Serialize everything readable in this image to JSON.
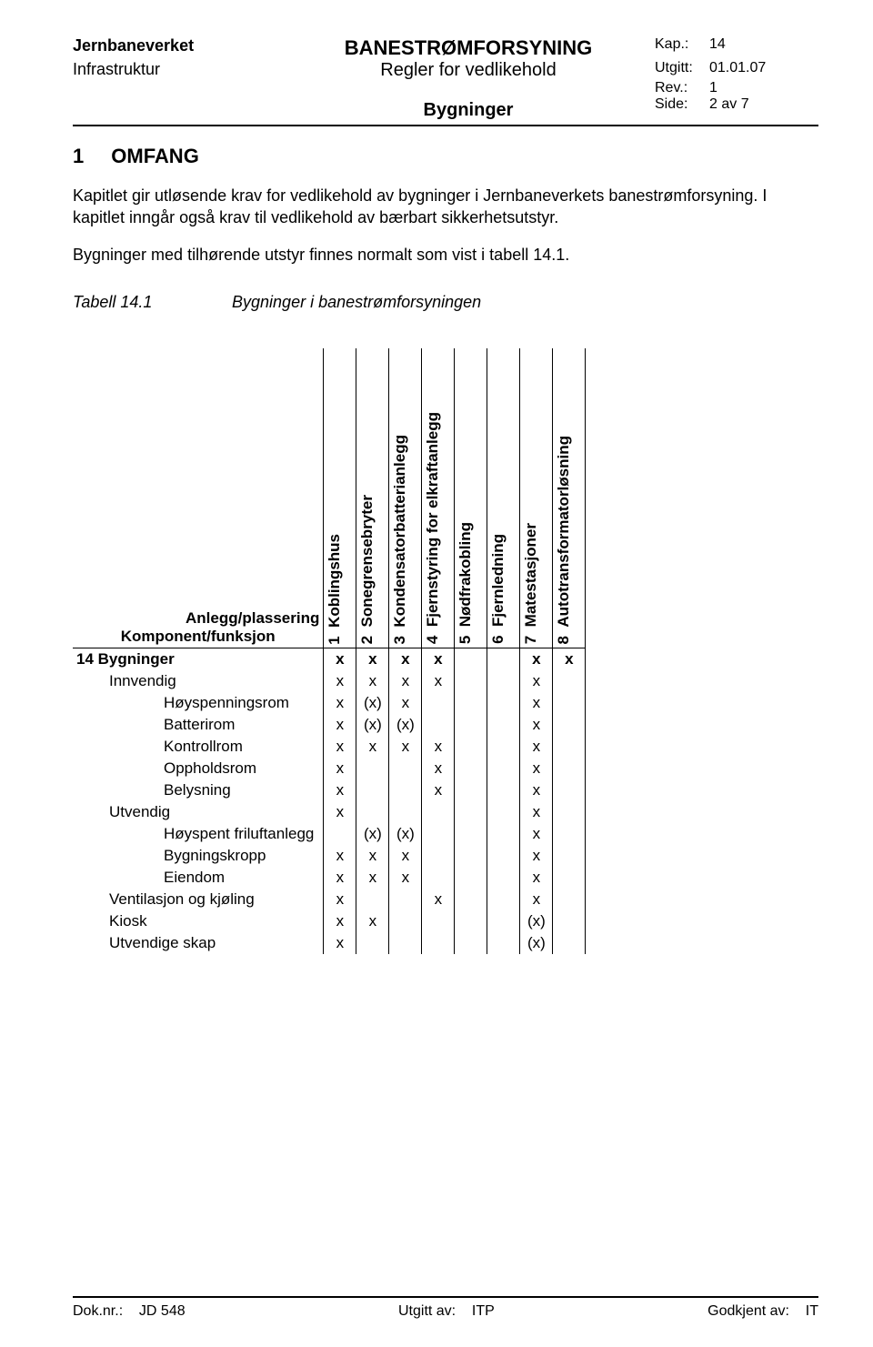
{
  "header": {
    "org": "Jernbaneverket",
    "dept": "Infrastruktur",
    "title_main": "BANESTRØMFORSYNING",
    "title_sub": "Regler for vedlikehold",
    "title_sub2": "Bygninger",
    "meta": {
      "kap_label": "Kap.:",
      "kap": "14",
      "utgitt_label": "Utgitt:",
      "utgitt": "01.01.07",
      "rev_label": "Rev.:",
      "rev": "1",
      "side_label": "Side:",
      "side": "2 av 7"
    }
  },
  "section": {
    "num": "1",
    "title": "OMFANG"
  },
  "para1": "Kapitlet gir utløsende krav for vedlikehold av bygninger i Jernbaneverkets banestrømforsyning. I kapitlet inngår også krav til vedlikehold av bærbart sikkerhetsutstyr.",
  "para2": "Bygninger med tilhørende utstyr finnes normalt som vist i tabell 14.1.",
  "tabell": {
    "no": "Tabell 14.1",
    "caption": "Bygninger i banestrømforsyningen"
  },
  "matrix": {
    "corner_top": "Anlegg/plassering",
    "corner_bottom": "Komponent/funksjon",
    "columns": [
      {
        "num": "1",
        "label": "Koblingshus"
      },
      {
        "num": "2",
        "label": "Sonegrensebryter"
      },
      {
        "num": "3",
        "label": "Kondensatorbatterianlegg"
      },
      {
        "num": "4",
        "label": "Fjernstyring for elkraftanlegg"
      },
      {
        "num": "5",
        "label": "Nødfrakobling"
      },
      {
        "num": "6",
        "label": "Fjernledning"
      },
      {
        "num": "7",
        "label": "Matestasjoner"
      },
      {
        "num": "8",
        "label": "Autotransformatorløsning"
      }
    ],
    "rows": [
      {
        "label": "14 Bygninger",
        "indent": 0,
        "bold": true,
        "cells": [
          "x",
          "x",
          "x",
          "x",
          "",
          "",
          "x",
          "x"
        ]
      },
      {
        "label": "Innvendig",
        "indent": 1,
        "cells": [
          "x",
          "x",
          "x",
          "x",
          "",
          "",
          "x",
          ""
        ]
      },
      {
        "label": "Høyspenningsrom",
        "indent": 2,
        "cells": [
          "x",
          "(x)",
          "x",
          "",
          "",
          "",
          "x",
          ""
        ]
      },
      {
        "label": "Batterirom",
        "indent": 2,
        "cells": [
          "x",
          "(x)",
          "(x)",
          "",
          "",
          "",
          "x",
          ""
        ]
      },
      {
        "label": "Kontrollrom",
        "indent": 2,
        "cells": [
          "x",
          "x",
          "x",
          "x",
          "",
          "",
          "x",
          ""
        ]
      },
      {
        "label": "Oppholdsrom",
        "indent": 2,
        "cells": [
          "x",
          "",
          "",
          "x",
          "",
          "",
          "x",
          ""
        ]
      },
      {
        "label": "Belysning",
        "indent": 2,
        "cells": [
          "x",
          "",
          "",
          "x",
          "",
          "",
          "x",
          ""
        ]
      },
      {
        "label": "Utvendig",
        "indent": 1,
        "cells": [
          "x",
          "",
          "",
          "",
          "",
          "",
          "x",
          ""
        ]
      },
      {
        "label": "Høyspent friluftanlegg",
        "indent": 2,
        "cells": [
          "",
          "(x)",
          "(x)",
          "",
          "",
          "",
          "x",
          ""
        ]
      },
      {
        "label": "Bygningskropp",
        "indent": 2,
        "cells": [
          "x",
          "x",
          "x",
          "",
          "",
          "",
          "x",
          ""
        ]
      },
      {
        "label": "Eiendom",
        "indent": 2,
        "cells": [
          "x",
          "x",
          "x",
          "",
          "",
          "",
          "x",
          ""
        ]
      },
      {
        "label": "Ventilasjon og kjøling",
        "indent": 1,
        "cells": [
          "x",
          "",
          "",
          "x",
          "",
          "",
          "x",
          ""
        ]
      },
      {
        "label": "Kiosk",
        "indent": 1,
        "cells": [
          "x",
          "x",
          "",
          "",
          "",
          "",
          "(x)",
          ""
        ]
      },
      {
        "label": "Utvendige skap",
        "indent": 1,
        "cells": [
          "x",
          "",
          "",
          "",
          "",
          "",
          "(x)",
          ""
        ]
      }
    ]
  },
  "footer": {
    "dok_label": "Dok.nr.:",
    "dok": "JD 548",
    "utgitt_label": "Utgitt av:",
    "utgitt": "ITP",
    "godkjent_label": "Godkjent av:",
    "godkjent": "IT"
  }
}
